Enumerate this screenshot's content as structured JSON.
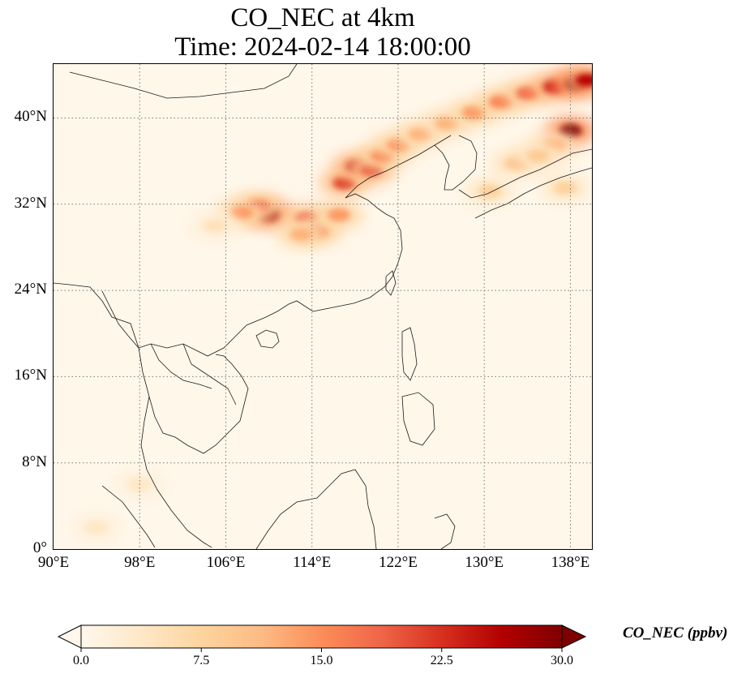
{
  "title": {
    "line1": "CO_NEC at 4km",
    "line2": "Time: 2024-02-14 18:00:00"
  },
  "map": {
    "projection": "PlateCarree",
    "lon_range": [
      90,
      140
    ],
    "lat_range": [
      0,
      45
    ],
    "variable": "CO_NEC",
    "gridlines": "dotted",
    "lat_ticks": [
      {
        "value": 0,
        "label": "0°"
      },
      {
        "value": 8,
        "label": "8°N"
      },
      {
        "value": 16,
        "label": "16°N"
      },
      {
        "value": 24,
        "label": "24°N"
      },
      {
        "value": 32,
        "label": "32°N"
      },
      {
        "value": 40,
        "label": "40°N"
      }
    ],
    "lon_ticks": [
      {
        "value": 90,
        "label": "90°E"
      },
      {
        "value": 98,
        "label": "98°E"
      },
      {
        "value": 106,
        "label": "106°E"
      },
      {
        "value": 114,
        "label": "114°E"
      },
      {
        "value": 122,
        "label": "122°E"
      },
      {
        "value": 130,
        "label": "130°E"
      },
      {
        "value": 138,
        "label": "138°E"
      }
    ],
    "plumes": [
      {
        "lon": 110,
        "lat": 31.0,
        "value": 28
      },
      {
        "lon": 109,
        "lat": 31.8,
        "value": 18
      },
      {
        "lon": 107.5,
        "lat": 31.2,
        "value": 14
      },
      {
        "lon": 113.5,
        "lat": 30.6,
        "value": 20
      },
      {
        "lon": 114.5,
        "lat": 29.5,
        "value": 16
      },
      {
        "lon": 116.5,
        "lat": 31.0,
        "value": 14
      },
      {
        "lon": 113,
        "lat": 29.2,
        "value": 12
      },
      {
        "lon": 117.0,
        "lat": 34.0,
        "value": 22
      },
      {
        "lon": 118.2,
        "lat": 35.5,
        "value": 24
      },
      {
        "lon": 119.5,
        "lat": 35.2,
        "value": 20
      },
      {
        "lon": 120.5,
        "lat": 36.5,
        "value": 16
      },
      {
        "lon": 122,
        "lat": 37.5,
        "value": 14
      },
      {
        "lon": 124,
        "lat": 38.5,
        "value": 12
      },
      {
        "lon": 126.5,
        "lat": 39.5,
        "value": 12
      },
      {
        "lon": 129,
        "lat": 40.5,
        "value": 14
      },
      {
        "lon": 131.5,
        "lat": 41.5,
        "value": 16
      },
      {
        "lon": 134,
        "lat": 42.3,
        "value": 18
      },
      {
        "lon": 136.5,
        "lat": 42.9,
        "value": 24
      },
      {
        "lon": 138.5,
        "lat": 43.2,
        "value": 30
      },
      {
        "lon": 139.5,
        "lat": 43.5,
        "value": 26
      },
      {
        "lon": 138,
        "lat": 38.8,
        "value": 30
      },
      {
        "lon": 136.5,
        "lat": 37.5,
        "value": 12
      },
      {
        "lon": 133,
        "lat": 35.8,
        "value": 10
      },
      {
        "lon": 135,
        "lat": 36.5,
        "value": 9
      },
      {
        "lon": 130.5,
        "lat": 33.2,
        "value": 8
      },
      {
        "lon": 137.5,
        "lat": 33.5,
        "value": 8
      },
      {
        "lon": 105,
        "lat": 30.0,
        "value": 5
      },
      {
        "lon": 98,
        "lat": 6,
        "value": 4
      },
      {
        "lon": 94,
        "lat": 2,
        "value": 4
      }
    ],
    "land_color": "#2b2b2b"
  },
  "colorbar": {
    "label": "CO_NEC (ppbv)",
    "min": 0.0,
    "max": 30.0,
    "ticks": [
      "0.0",
      "7.5",
      "15.0",
      "22.5",
      "30.0"
    ],
    "cmap": "OrRd",
    "colors": [
      "#fff7ec",
      "#fee8c8",
      "#fdd49e",
      "#fdbb84",
      "#fc8d59",
      "#ef6548",
      "#d7301f",
      "#b30000",
      "#7f0000"
    ],
    "extend": "both"
  }
}
